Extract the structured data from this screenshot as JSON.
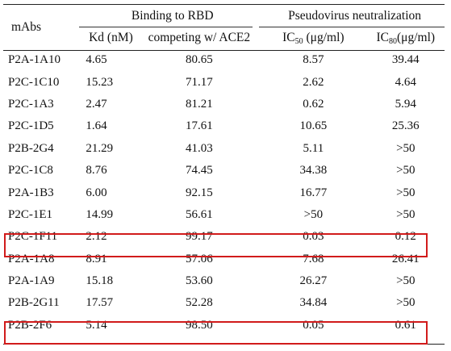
{
  "header": {
    "mabs_label": "mAbs",
    "group_binding": "Binding to RBD",
    "group_neutralization": "Pseudovirus neutralization",
    "col_kd": "Kd (nM)",
    "col_competing": "competing w/ ACE2",
    "col_ic50_prefix": "IC",
    "col_ic50_sub": "50",
    "col_ic50_suffix": " (μg/ml)",
    "col_ic80_prefix": "IC",
    "col_ic80_sub": "80",
    "col_ic80_suffix": "(μg/ml)"
  },
  "rows": [
    {
      "mab": "P2A-1A10",
      "kd": "4.65",
      "competing": "80.65",
      "ic50": "8.57",
      "ic80": "39.44"
    },
    {
      "mab": "P2C-1C10",
      "kd": "15.23",
      "competing": "71.17",
      "ic50": "2.62",
      "ic80": "4.64"
    },
    {
      "mab": "P2C-1A3",
      "kd": "2.47",
      "competing": "81.21",
      "ic50": "0.62",
      "ic80": "5.94"
    },
    {
      "mab": "P2C-1D5",
      "kd": "1.64",
      "competing": "17.61",
      "ic50": "10.65",
      "ic80": "25.36"
    },
    {
      "mab": "P2B-2G4",
      "kd": "21.29",
      "competing": "41.03",
      "ic50": "5.11",
      "ic80": ">50"
    },
    {
      "mab": "P2C-1C8",
      "kd": "8.76",
      "competing": "74.45",
      "ic50": "34.38",
      "ic80": ">50"
    },
    {
      "mab": "P2A-1B3",
      "kd": "6.00",
      "competing": "92.15",
      "ic50": "16.77",
      "ic80": ">50"
    },
    {
      "mab": "P2C-1E1",
      "kd": "14.99",
      "competing": "56.61",
      "ic50": ">50",
      "ic80": ">50"
    },
    {
      "mab": "P2C-1F11",
      "kd": "2.12",
      "competing": "99.17",
      "ic50": "0.03",
      "ic80": "0.12"
    },
    {
      "mab": "P2A-1A8",
      "kd": "8.91",
      "competing": "57.06",
      "ic50": "7.68",
      "ic80": "26.41"
    },
    {
      "mab": "P2A-1A9",
      "kd": "15.18",
      "competing": "53.60",
      "ic50": "26.27",
      "ic80": ">50"
    },
    {
      "mab": "P2B-2G11",
      "kd": "17.57",
      "competing": "52.28",
      "ic50": "34.84",
      "ic80": ">50"
    },
    {
      "mab": "P2B-2F6",
      "kd": "5.14",
      "competing": "98.50",
      "ic50": "0.05",
      "ic80": "0.61"
    }
  ],
  "highlighted_rows": [
    "P2C-1F11",
    "P2B-2F6"
  ],
  "colors": {
    "highlight": "#d11b1b",
    "text": "#111111",
    "rule": "#222222"
  }
}
